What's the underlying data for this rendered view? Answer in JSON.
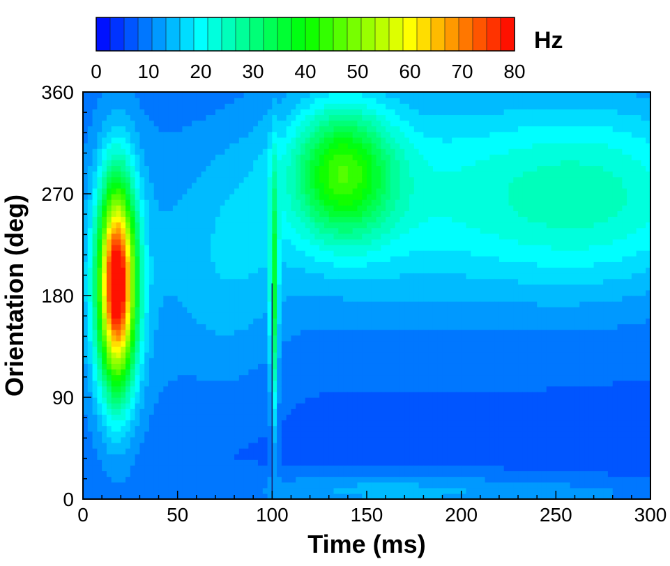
{
  "chart_data": {
    "type": "heatmap",
    "title": "",
    "xlabel": "Time (ms)",
    "ylabel": "Orientation (deg)",
    "xlim": [
      0,
      300
    ],
    "ylim": [
      0,
      360
    ],
    "xticks": [
      "0",
      "50",
      "100",
      "150",
      "200",
      "250",
      "300"
    ],
    "yticks": [
      "0",
      "90",
      "180",
      "270",
      "360"
    ],
    "colorbar": {
      "unit": "Hz",
      "range": [
        0,
        80
      ],
      "ticks": [
        "0",
        "10",
        "20",
        "30",
        "40",
        "50",
        "60",
        "70",
        "80"
      ],
      "levels": 30,
      "colormap": [
        "#0000ff",
        "#00ffff",
        "#00ff00",
        "#ffff00",
        "#ff0000"
      ]
    },
    "background_rate": 7,
    "hotspots": [
      {
        "label": "initial transient peak",
        "time": 18,
        "orientation": 190,
        "peak_hz": 80
      },
      {
        "label": "late response peak",
        "time": 137,
        "orientation": 290,
        "peak_hz": 40
      },
      {
        "label": "sustained response",
        "time": 265,
        "orientation": 270,
        "peak_hz": 28
      },
      {
        "label": "stimulus artifact",
        "time": 100,
        "orientation": 205,
        "peak_hz": 30
      }
    ],
    "grid": false,
    "legend": "colorbar top"
  }
}
